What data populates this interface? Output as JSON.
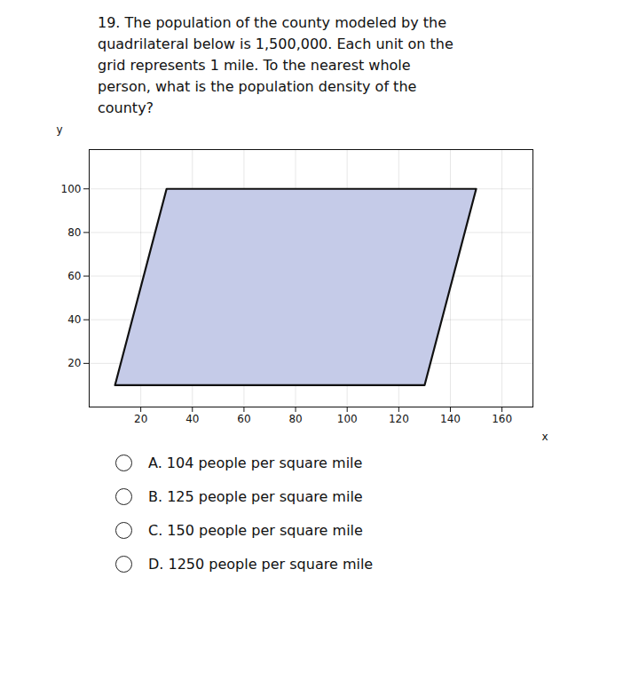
{
  "chart_data": {
    "type": "polygon",
    "title": "19. The population of the county modeled by the\nquadrilateral below is 1,500,000. Each unit on the\ngrid represents 1 mile. To the nearest whole\nperson, what is the population density of the\ncounty?",
    "x": [
      10,
      30,
      150,
      130
    ],
    "values": [
      10,
      100,
      100,
      10
    ],
    "color": "#c5cbe8",
    "x_label": "x",
    "y_label": "y",
    "xlim": [
      0,
      172
    ],
    "ylim": [
      0,
      118
    ],
    "xticks": [
      20,
      40,
      60,
      80,
      100,
      120,
      140,
      160
    ],
    "yticks": [
      20,
      40,
      60,
      80,
      100
    ],
    "grid": true,
    "annotations": [
      "A. 104 people per square mile",
      "B. 125 people per square mile",
      "C. 150 people per square mile",
      "D. 1250 people per square mile"
    ]
  }
}
